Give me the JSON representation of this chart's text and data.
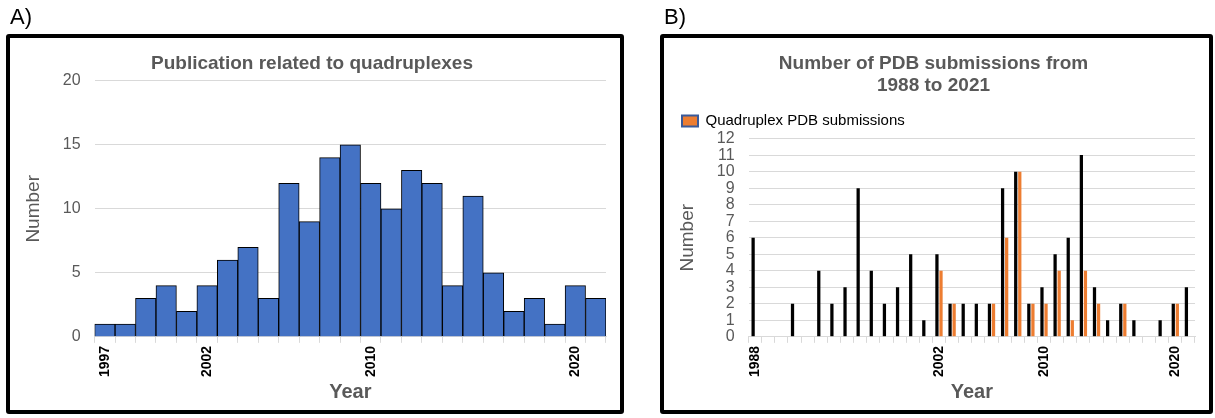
{
  "chart_data": [
    {
      "type": "bar",
      "title": "Publication related to quadruplexes",
      "xlabel": "Year",
      "ylabel": "Number",
      "annotations": [
        "A)"
      ],
      "categories": [
        "1997",
        null,
        null,
        null,
        null,
        "2002",
        null,
        null,
        null,
        null,
        null,
        null,
        null,
        "2010",
        null,
        null,
        null,
        null,
        null,
        null,
        null,
        null,
        null,
        "2020",
        null
      ],
      "values": [
        1,
        1,
        3,
        4,
        2,
        4,
        6,
        7,
        3,
        12,
        9,
        14,
        15,
        12,
        10,
        13,
        12,
        4,
        11,
        5,
        2,
        3,
        1,
        4,
        3
      ],
      "color": "#4472c4",
      "ylim": [
        0,
        20
      ],
      "yticks": [
        0,
        5,
        10,
        15,
        20
      ],
      "grid": "y",
      "legend": false
    },
    {
      "type": "bar",
      "title": "Number of PDB submissions from 1988 to 2021",
      "xlabel": "Year",
      "ylabel": "Number",
      "annotations": [
        "B)"
      ],
      "categories": [
        "1988",
        null,
        null,
        null,
        null,
        null,
        null,
        null,
        null,
        null,
        null,
        null,
        null,
        null,
        "2002",
        null,
        null,
        null,
        null,
        null,
        null,
        null,
        "2010",
        null,
        null,
        null,
        null,
        null,
        null,
        null,
        null,
        null,
        "2020",
        null
      ],
      "series": [
        {
          "color": "#000000",
          "values": [
            6,
            0,
            0,
            2,
            0,
            4,
            2,
            3,
            9,
            4,
            2,
            3,
            5,
            1,
            5,
            2,
            2,
            2,
            2,
            9,
            10,
            2,
            3,
            5,
            6,
            11,
            3,
            1,
            2,
            1,
            0,
            1,
            2,
            3
          ]
        },
        {
          "name": "Quadruplex PDB submissions",
          "color": "#ed7d31",
          "values": [
            0,
            0,
            0,
            0,
            0,
            0,
            0,
            0,
            0,
            0,
            0,
            0,
            0,
            0,
            4,
            2,
            0,
            0,
            2,
            6,
            10,
            2,
            2,
            4,
            1,
            4,
            2,
            0,
            2,
            0,
            0,
            0,
            2,
            0
          ]
        }
      ],
      "ylim": [
        0,
        12
      ],
      "yticks": [
        0,
        1,
        2,
        3,
        4,
        5,
        6,
        7,
        8,
        9,
        10,
        11,
        12
      ],
      "grid": "y",
      "legend": "top left"
    }
  ]
}
